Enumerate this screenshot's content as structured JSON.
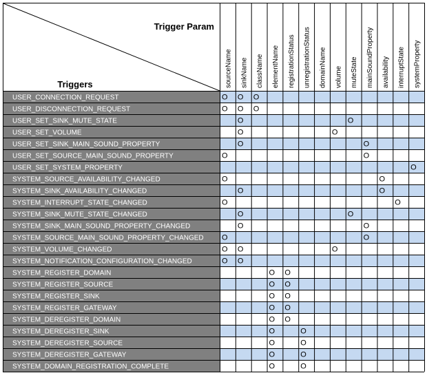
{
  "header": {
    "column_axis_label": "Trigger Param",
    "row_axis_label": "Triggers"
  },
  "columns": [
    "sourceName",
    "sinkName",
    "className",
    "elementName",
    "registrationStatus",
    "unregistrationStatus",
    "domainName",
    "volume",
    "muteState",
    "mainSoundProperty",
    "availability",
    "interruptState",
    "systemProperty"
  ],
  "mark_symbol": "O",
  "colors": {
    "trigger_cell_bg": "#808080",
    "trigger_text": "#ffffff",
    "header_bg": "#ffffff",
    "row_alt_bg": "#c5d9f1",
    "row_bg": "#ffffff",
    "grid_line": "#000000"
  },
  "rows": [
    {
      "trigger": "USER_CONNECTION_REQUEST",
      "marks": [
        0,
        1,
        2
      ]
    },
    {
      "trigger": "USER_DISCONNECTION_REQUEST",
      "marks": [
        0,
        1,
        2
      ]
    },
    {
      "trigger": "USER_SET_SINK_MUTE_STATE",
      "marks": [
        1,
        8
      ]
    },
    {
      "trigger": "USER_SET_VOLUME",
      "marks": [
        1,
        7
      ]
    },
    {
      "trigger": "USER_SET_SINK_MAIN_SOUND_PROPERTY",
      "marks": [
        1,
        9
      ]
    },
    {
      "trigger": "USER_SET_SOURCE_MAIN_SOUND_PROPERTY",
      "marks": [
        0,
        9
      ]
    },
    {
      "trigger": "USER_SET_SYSTEM_PROPERTY",
      "marks": [
        12
      ]
    },
    {
      "trigger": "SYSTEM_SOURCE_AVAILABILITY_CHANGED",
      "marks": [
        0,
        10
      ]
    },
    {
      "trigger": "SYSTEM_SINK_AVAILABILITY_CHANGED",
      "marks": [
        1,
        10
      ]
    },
    {
      "trigger": "SYSTEM_INTERRUPT_STATE_CHANGED",
      "marks": [
        0,
        11
      ]
    },
    {
      "trigger": "SYSTEM_SINK_MUTE_STATE_CHANGED",
      "marks": [
        1,
        8
      ]
    },
    {
      "trigger": "SYSTEM_SINK_MAIN_SOUND_PROPERTY_CHANGED",
      "marks": [
        1,
        9
      ]
    },
    {
      "trigger": "SYSTEM_SOURCE_MAIN_SOUND_PROPERTY_CHANGED",
      "marks": [
        0,
        9
      ]
    },
    {
      "trigger": "SYSTEM_VOLUME_CHANGED",
      "marks": [
        0,
        1,
        7
      ]
    },
    {
      "trigger": "SYSTEM_NOTIFICATION_CONFIGURATION_CHANGED",
      "marks": [
        0,
        1
      ]
    },
    {
      "trigger": "SYSTEM_REGISTER_DOMAIN",
      "marks": [
        3,
        4
      ]
    },
    {
      "trigger": "SYSTEM_REGISTER_SOURCE",
      "marks": [
        3,
        4
      ]
    },
    {
      "trigger": "SYSTEM_REGISTER_SINK",
      "marks": [
        3,
        4
      ]
    },
    {
      "trigger": "SYSTEM_REGISTER_GATEWAY",
      "marks": [
        3,
        4
      ]
    },
    {
      "trigger": "SYSTEM_DEREGISTER_DOMAIN",
      "marks": [
        3,
        4
      ]
    },
    {
      "trigger": "SYSTEM_DEREGISTER_SINK",
      "marks": [
        3,
        5
      ]
    },
    {
      "trigger": "SYSTEM_DEREGISTER_SOURCE",
      "marks": [
        3,
        5
      ]
    },
    {
      "trigger": "SYSTEM_DEREGISTER_GATEWAY",
      "marks": [
        3,
        5
      ]
    },
    {
      "trigger": "SYSTEM_DOMAIN_REGISTRATION_COMPLETE",
      "marks": [
        3,
        5
      ]
    }
  ]
}
